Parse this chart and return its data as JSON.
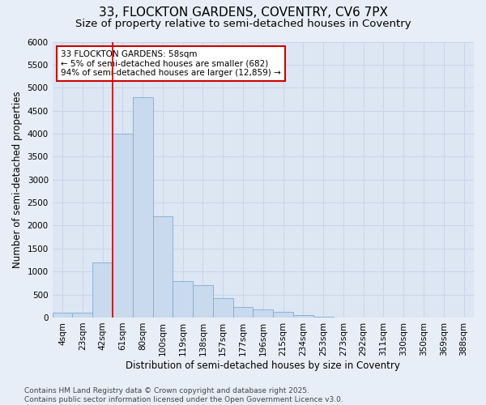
{
  "title_line1": "33, FLOCKTON GARDENS, COVENTRY, CV6 7PX",
  "title_line2": "Size of property relative to semi-detached houses in Coventry",
  "xlabel": "Distribution of semi-detached houses by size in Coventry",
  "ylabel": "Number of semi-detached properties",
  "categories": [
    "4sqm",
    "23sqm",
    "42sqm",
    "61sqm",
    "80sqm",
    "100sqm",
    "119sqm",
    "138sqm",
    "157sqm",
    "177sqm",
    "196sqm",
    "215sqm",
    "234sqm",
    "253sqm",
    "273sqm",
    "292sqm",
    "311sqm",
    "330sqm",
    "350sqm",
    "369sqm",
    "388sqm"
  ],
  "values": [
    100,
    100,
    1200,
    4000,
    4800,
    2200,
    800,
    700,
    420,
    220,
    170,
    130,
    60,
    20,
    8,
    5,
    3,
    2,
    1,
    1,
    1
  ],
  "bar_color": "#c9d9ee",
  "bar_edge_color": "#7bafd4",
  "vline_x_index": 3,
  "vline_color": "#cc0000",
  "annotation_text": "33 FLOCKTON GARDENS: 58sqm\n← 5% of semi-detached houses are smaller (682)\n94% of semi-detached houses are larger (12,859) →",
  "annotation_box_color": "#cc0000",
  "ylim": [
    0,
    6000
  ],
  "yticks": [
    0,
    500,
    1000,
    1500,
    2000,
    2500,
    3000,
    3500,
    4000,
    4500,
    5000,
    5500,
    6000
  ],
  "background_color": "#e8eef7",
  "plot_bg_color": "#dde6f3",
  "grid_color": "#c8d4e8",
  "footer_line1": "Contains HM Land Registry data © Crown copyright and database right 2025.",
  "footer_line2": "Contains public sector information licensed under the Open Government Licence v3.0.",
  "title_fontsize": 11,
  "subtitle_fontsize": 9.5,
  "axis_label_fontsize": 8.5,
  "tick_fontsize": 7.5,
  "annotation_fontsize": 7.5,
  "footer_fontsize": 6.5
}
